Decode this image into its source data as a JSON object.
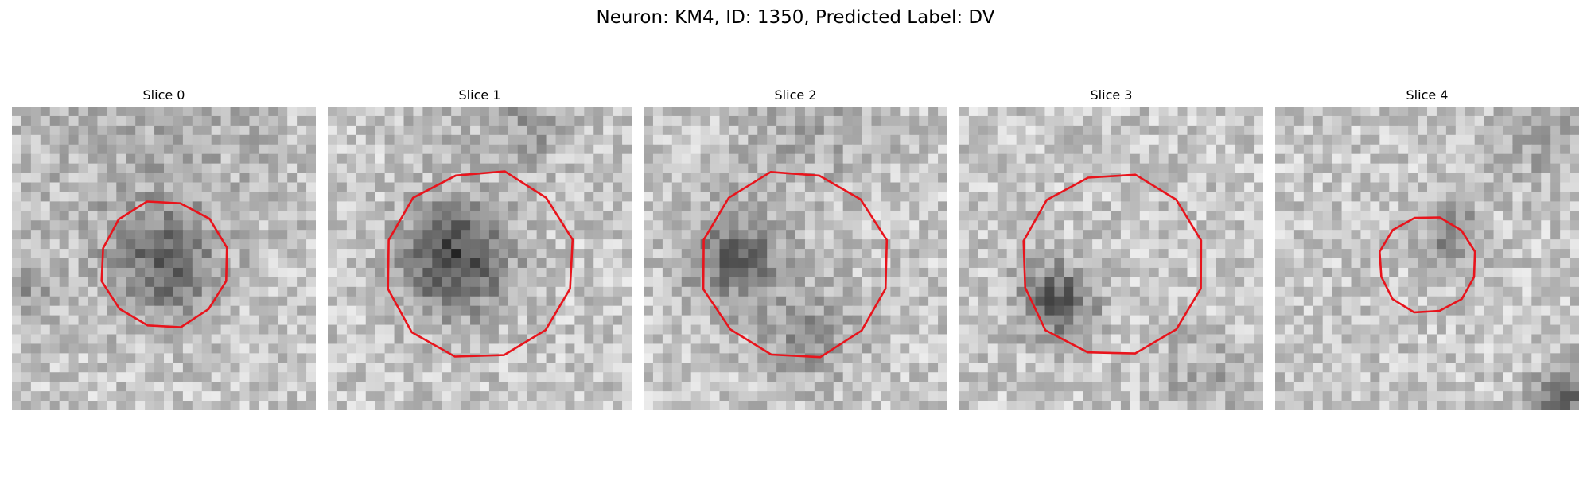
{
  "figure": {
    "title": "Neuron: KM4, ID: 1350, Predicted Label: DV",
    "contour_color": "#e8141c",
    "panels": [
      {
        "title": "Slice 0",
        "seed": 11,
        "blobs": [
          [
            0.5,
            0.52,
            0.22,
            0.34
          ],
          [
            0.45,
            0.1,
            0.55,
            0.1
          ],
          [
            0.05,
            0.6,
            0.12,
            0.18
          ]
        ],
        "contour_radius": 0.21
      },
      {
        "title": "Slice 1",
        "seed": 23,
        "blobs": [
          [
            0.42,
            0.5,
            0.22,
            0.5
          ],
          [
            0.65,
            0.06,
            0.18,
            0.16
          ],
          [
            0.35,
            0.08,
            0.12,
            0.1
          ]
        ],
        "contour_radius": 0.31
      },
      {
        "title": "Slice 2",
        "seed": 37,
        "blobs": [
          [
            0.3,
            0.5,
            0.2,
            0.36
          ],
          [
            0.55,
            0.75,
            0.2,
            0.2
          ],
          [
            0.55,
            0.06,
            0.3,
            0.12
          ]
        ],
        "contour_radius": 0.31
      },
      {
        "title": "Slice 3",
        "seed": 41,
        "blobs": [
          [
            0.32,
            0.64,
            0.16,
            0.4
          ],
          [
            0.8,
            0.9,
            0.18,
            0.12
          ]
        ],
        "contour_radius": 0.3
      },
      {
        "title": "Slice 4",
        "seed": 53,
        "blobs": [
          [
            0.58,
            0.42,
            0.12,
            0.26
          ],
          [
            0.95,
            0.95,
            0.12,
            0.4
          ],
          [
            0.9,
            0.1,
            0.2,
            0.14
          ]
        ],
        "contour_radius": 0.16
      }
    ]
  }
}
